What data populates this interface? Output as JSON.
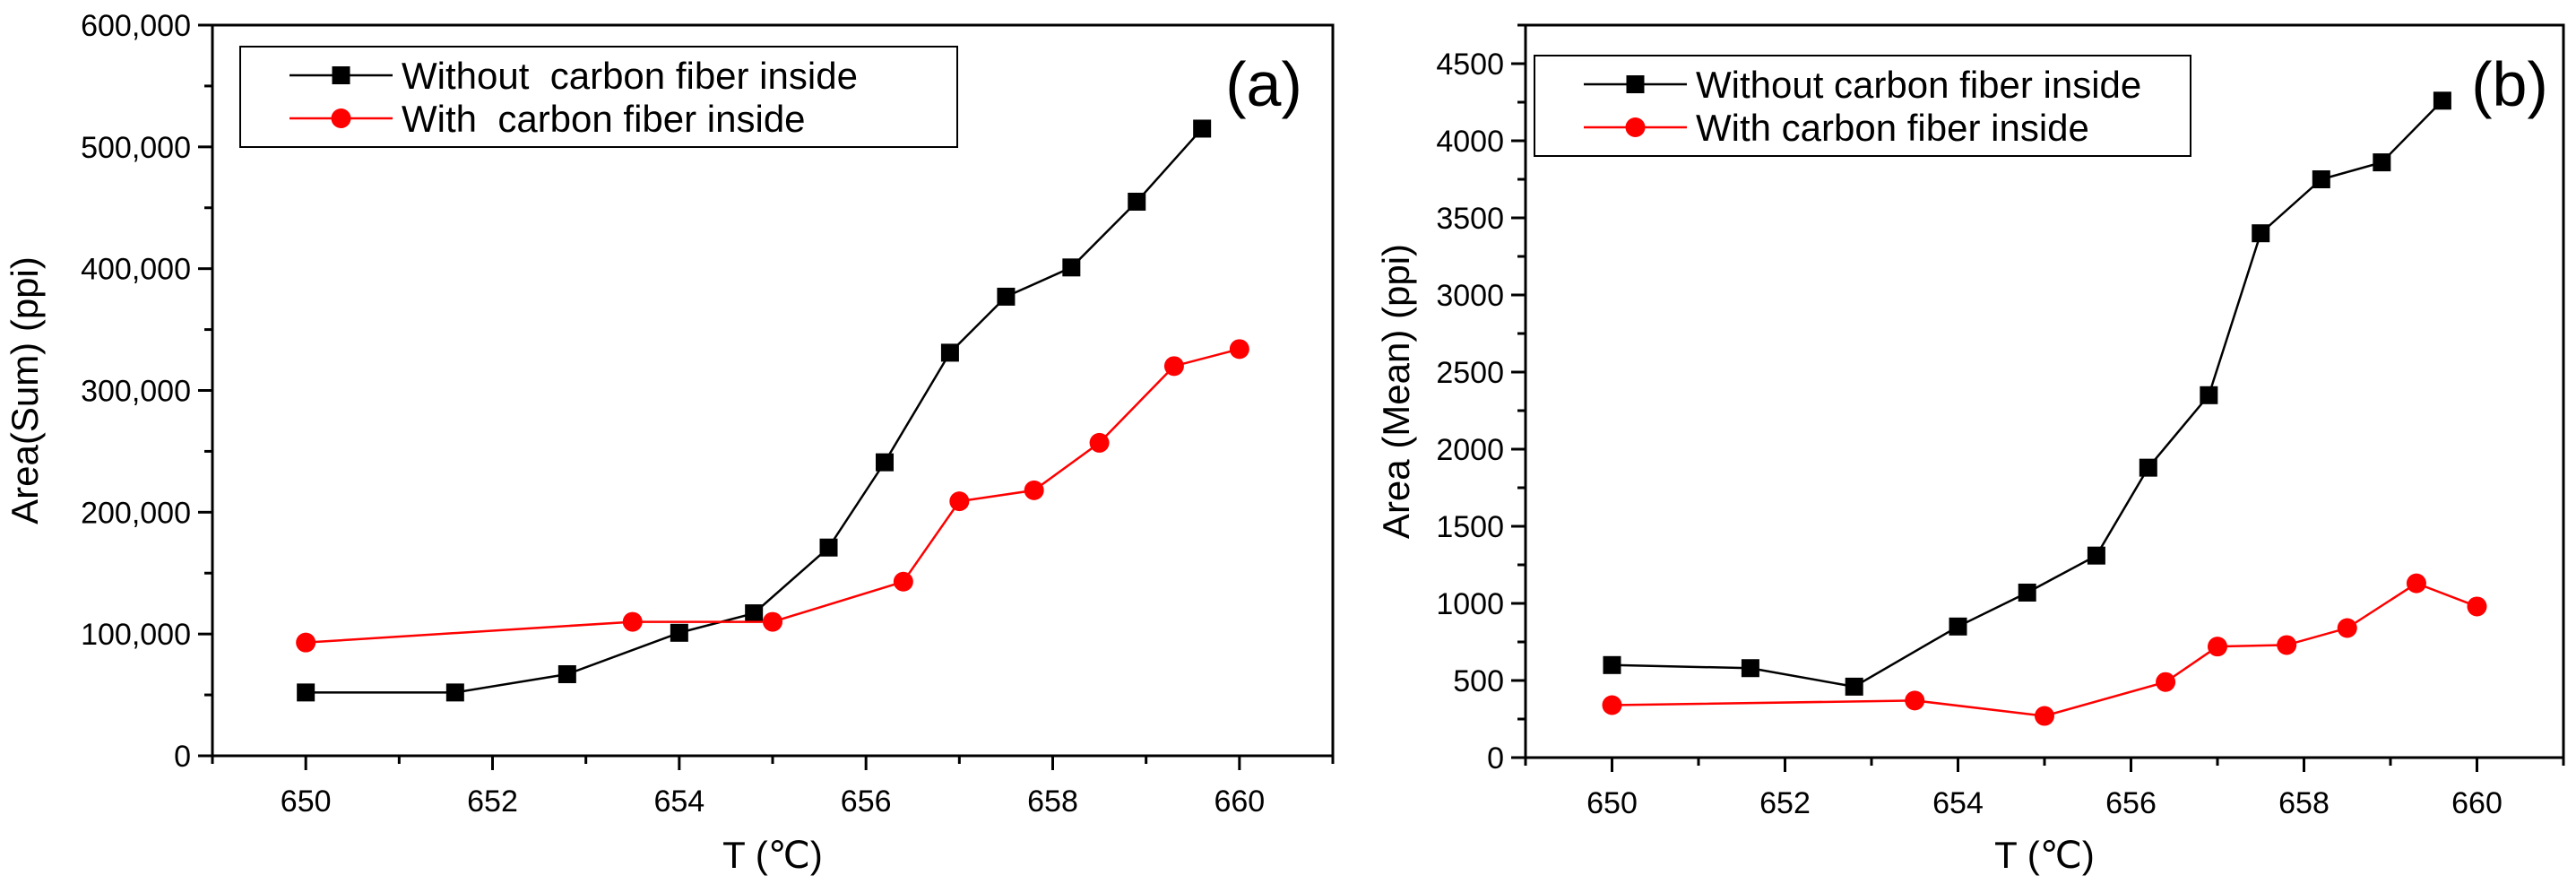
{
  "colors": {
    "black_series": "#000000",
    "red_series": "#ff0000",
    "axis": "#000000",
    "background": "#ffffff"
  },
  "chart_data": [
    {
      "type": "line",
      "panel_label": "(a)",
      "title": "",
      "xlabel": "T (℃)",
      "ylabel": "Area(Sum) (ppi)",
      "xlim": [
        649,
        661
      ],
      "ylim": [
        0,
        600000
      ],
      "xticks": [
        650,
        652,
        654,
        656,
        658,
        660
      ],
      "xtick_labels": [
        "650",
        "652",
        "654",
        "656",
        "658",
        "660"
      ],
      "yticks": [
        0,
        100000,
        200000,
        300000,
        400000,
        500000,
        600000
      ],
      "ytick_labels": [
        "0",
        "100,000",
        "200,000",
        "300,000",
        "400,000",
        "500,000",
        "600,000"
      ],
      "legend_position": "top-left",
      "series": [
        {
          "name": "Without  carbon fiber inside",
          "color": "#000000",
          "marker": "square",
          "x": [
            650,
            651.6,
            652.8,
            654,
            654.8,
            655.6,
            656.2,
            656.9,
            657.5,
            658.2,
            658.9,
            659.6
          ],
          "y": [
            52000,
            52000,
            67000,
            101000,
            117000,
            171000,
            241000,
            331000,
            377000,
            401000,
            455000,
            515000
          ]
        },
        {
          "name": "With  carbon fiber inside",
          "color": "#ff0000",
          "marker": "circle",
          "x": [
            650,
            653.5,
            655,
            656.4,
            657,
            657.8,
            658.5,
            659.3,
            660
          ],
          "y": [
            93000,
            110000,
            110000,
            143000,
            209000,
            218000,
            257000,
            320000,
            334000
          ]
        }
      ]
    },
    {
      "type": "line",
      "panel_label": "(b)",
      "title": "",
      "xlabel": "T (℃)",
      "ylabel": "Area (Mean) (ppi)",
      "xlim": [
        649,
        661
      ],
      "ylim": [
        0,
        4750
      ],
      "xticks": [
        650,
        652,
        654,
        656,
        658,
        660
      ],
      "xtick_labels": [
        "650",
        "652",
        "654",
        "656",
        "658",
        "660"
      ],
      "yticks": [
        0,
        500,
        1000,
        1500,
        2000,
        2500,
        3000,
        3500,
        4000,
        4500
      ],
      "ytick_labels": [
        "0",
        "500",
        "1000",
        "1500",
        "2000",
        "2500",
        "3000",
        "3500",
        "4000",
        "4500"
      ],
      "legend_position": "top-left",
      "series": [
        {
          "name": "Without carbon fiber inside",
          "color": "#000000",
          "marker": "square",
          "x": [
            650,
            651.6,
            652.8,
            654,
            654.8,
            655.6,
            656.2,
            656.9,
            657.5,
            658.2,
            658.9,
            659.6
          ],
          "y": [
            600,
            580,
            460,
            850,
            1070,
            1310,
            1880,
            2350,
            3400,
            3750,
            3860,
            4260
          ]
        },
        {
          "name": "With carbon fiber inside",
          "color": "#ff0000",
          "marker": "circle",
          "x": [
            650,
            653.5,
            655,
            656.4,
            657,
            657.8,
            658.5,
            659.3,
            660
          ],
          "y": [
            340,
            370,
            270,
            490,
            720,
            730,
            840,
            1130,
            980
          ]
        }
      ]
    }
  ]
}
